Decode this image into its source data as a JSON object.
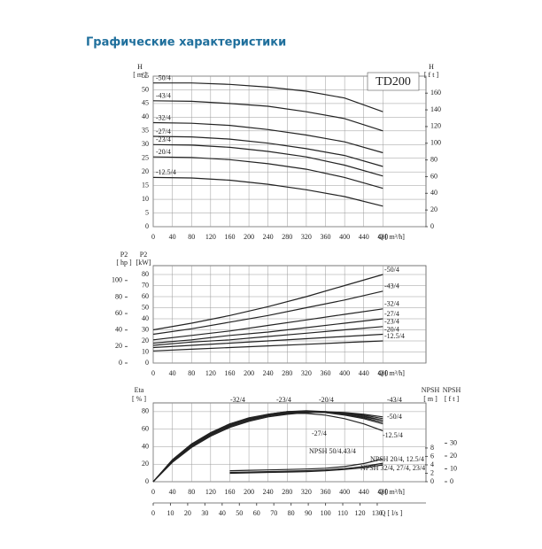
{
  "title": "Графические характеристики",
  "chart_data": [
    {
      "type": "line",
      "title": "TD200",
      "axis_labels": [
        "H",
        "[ m ]",
        "H",
        "[ f t ]",
        "Q [ m³/h]"
      ],
      "x": [
        0,
        80,
        160,
        240,
        320,
        400,
        480
      ],
      "xlim": [
        0,
        570
      ],
      "xticks": [
        0,
        40,
        80,
        120,
        160,
        200,
        240,
        280,
        320,
        360,
        400,
        440,
        480
      ],
      "ylim": [
        0,
        55
      ],
      "yticks": [
        0,
        5,
        10,
        15,
        20,
        25,
        30,
        35,
        40,
        45,
        50,
        55
      ],
      "y2lim": [
        0,
        180.4
      ],
      "y2ticks": [
        0,
        20,
        40,
        60,
        80,
        100,
        120,
        140,
        160
      ],
      "series": [
        {
          "name": "-50/4",
          "color": "#222",
          "values": [
            52.5,
            52.5,
            52,
            51,
            49.5,
            47,
            42
          ]
        },
        {
          "name": "-43/4",
          "color": "#222",
          "values": [
            46,
            45.8,
            45,
            44,
            42,
            39.5,
            35
          ]
        },
        {
          "name": "-32/4",
          "color": "#222",
          "values": [
            38,
            37.8,
            37,
            35.5,
            33.5,
            31,
            27
          ]
        },
        {
          "name": "-27/4",
          "color": "#222",
          "values": [
            33,
            32.8,
            32,
            30.5,
            28.5,
            26,
            22
          ]
        },
        {
          "name": "-23/4",
          "color": "#222",
          "values": [
            30,
            29.8,
            29,
            27.5,
            25.5,
            22.5,
            18.5
          ]
        },
        {
          "name": "-20/4",
          "color": "#222",
          "values": [
            25.5,
            25.3,
            24.5,
            23,
            21,
            18,
            14
          ]
        },
        {
          "name": "-12.5/4",
          "color": "#222",
          "values": [
            18,
            17.8,
            17,
            15.5,
            13.5,
            11,
            7.5
          ]
        }
      ]
    },
    {
      "type": "line",
      "axis_labels": [
        "P2",
        "[ hp ]",
        "P2",
        "[kW]",
        "Q [ m³/h]"
      ],
      "x": [
        0,
        80,
        160,
        240,
        320,
        400,
        480
      ],
      "xlim": [
        0,
        570
      ],
      "xticks": [
        0,
        40,
        80,
        120,
        160,
        200,
        240,
        280,
        320,
        360,
        400,
        440,
        480
      ],
      "ylim": [
        0,
        88
      ],
      "yticks": [
        0,
        10,
        20,
        30,
        40,
        50,
        60,
        70,
        80
      ],
      "y2lim": [
        0,
        118
      ],
      "y2ticks": [
        0,
        20,
        40,
        60,
        80,
        100
      ],
      "series": [
        {
          "name": "-50/4",
          "color": "#222",
          "values": [
            30,
            36,
            43,
            51,
            60,
            70,
            80
          ]
        },
        {
          "name": "-43/4",
          "color": "#222",
          "values": [
            26,
            31,
            37,
            43,
            50,
            57,
            65
          ]
        },
        {
          "name": "-32/4",
          "color": "#222",
          "values": [
            21,
            25,
            29,
            34,
            39,
            44,
            49
          ]
        },
        {
          "name": "-27/4",
          "color": "#222",
          "values": [
            18,
            21,
            25,
            28,
            32,
            36,
            40
          ]
        },
        {
          "name": "-23/4",
          "color": "#222",
          "values": [
            16,
            19,
            21,
            24,
            27,
            30,
            33
          ]
        },
        {
          "name": "-20/4",
          "color": "#222",
          "values": [
            14,
            16,
            18,
            20,
            22,
            24,
            26
          ]
        },
        {
          "name": "-12.5/4",
          "color": "#222",
          "values": [
            11,
            12.5,
            14,
            15.5,
            17,
            18.5,
            20
          ]
        }
      ]
    },
    {
      "type": "line",
      "axis_labels": [
        "Eta",
        "[ % ]",
        "NPSH",
        "[ m ]",
        "NPSH",
        "[ f t ]",
        "Q [ m³/h]",
        "Q [ l/s ]"
      ],
      "x": [
        0,
        40,
        80,
        120,
        160,
        200,
        240,
        280,
        320,
        360,
        400,
        440,
        480
      ],
      "xlim": [
        0,
        570
      ],
      "xticks": [
        0,
        40,
        80,
        120,
        160,
        200,
        240,
        280,
        320,
        360,
        400,
        440,
        480
      ],
      "x2lim": [
        0,
        158.3
      ],
      "x2ticks": [
        0,
        10,
        20,
        30,
        40,
        50,
        60,
        70,
        80,
        90,
        100,
        110,
        120,
        130
      ],
      "ylim": [
        0,
        90
      ],
      "yticks": [
        0,
        20,
        40,
        60,
        80
      ],
      "y2lim": [
        0,
        18.7
      ],
      "y2ticks": [
        0,
        2,
        4,
        6,
        8
      ],
      "y3lim": [
        0,
        61.4
      ],
      "y3ticks": [
        0,
        10,
        20,
        30
      ],
      "series": [
        {
          "name": "-50/4",
          "color": "#222",
          "values": [
            0,
            22,
            39,
            52,
            62,
            69,
            74,
            77,
            79,
            79.5,
            78.5,
            76,
            72
          ]
        },
        {
          "name": "-43/4",
          "color": "#222",
          "values": [
            0,
            23,
            40,
            53,
            63,
            70,
            75,
            78,
            80,
            80,
            79,
            77,
            74
          ]
        },
        {
          "name": "-32/4",
          "color": "#222",
          "values": [
            0,
            24,
            42,
            55,
            65,
            72,
            77,
            80,
            81,
            80,
            78,
            75,
            70
          ]
        },
        {
          "name": "-27/4",
          "color": "#222",
          "values": [
            0,
            24,
            41,
            54,
            64,
            71,
            76,
            79,
            80,
            79,
            77,
            73,
            68
          ]
        },
        {
          "name": "-23/4",
          "color": "#222",
          "values": [
            0,
            25,
            43,
            56,
            66,
            73,
            77,
            80,
            80.5,
            79,
            76,
            72,
            66
          ]
        },
        {
          "name": "-20/4",
          "color": "#222",
          "values": [
            0,
            24,
            42,
            55,
            65,
            72,
            76,
            79,
            80,
            79,
            77,
            74,
            70
          ]
        },
        {
          "name": "-12.5/4",
          "color": "#222",
          "values": [
            0,
            25,
            43,
            56,
            66,
            72,
            76,
            78,
            78,
            76,
            72,
            66,
            58
          ]
        },
        {
          "name": "NPSH 50/4.43/4",
          "color": "#222",
          "axis": "y2",
          "x": [
            160,
            200,
            240,
            280,
            320,
            360,
            400,
            440,
            480
          ],
          "values": [
            2.6,
            2.7,
            2.8,
            2.9,
            3.0,
            3.2,
            3.6,
            4.3,
            5.4
          ]
        },
        {
          "name": "NPSH 20/4, 12.5/4",
          "color": "#222",
          "axis": "y2",
          "x": [
            160,
            200,
            240,
            280,
            320,
            360,
            400,
            440,
            480
          ],
          "values": [
            2.2,
            2.3,
            2.4,
            2.5,
            2.6,
            2.8,
            3.1,
            3.6,
            4.4
          ]
        },
        {
          "name": "NPSH 32/4, 27/4, 23/4",
          "color": "#222",
          "axis": "y2",
          "x": [
            160,
            200,
            240,
            280,
            320,
            360,
            400,
            440,
            480
          ],
          "values": [
            2.0,
            2.1,
            2.2,
            2.3,
            2.4,
            2.6,
            2.9,
            3.3,
            4.0
          ]
        }
      ]
    }
  ]
}
